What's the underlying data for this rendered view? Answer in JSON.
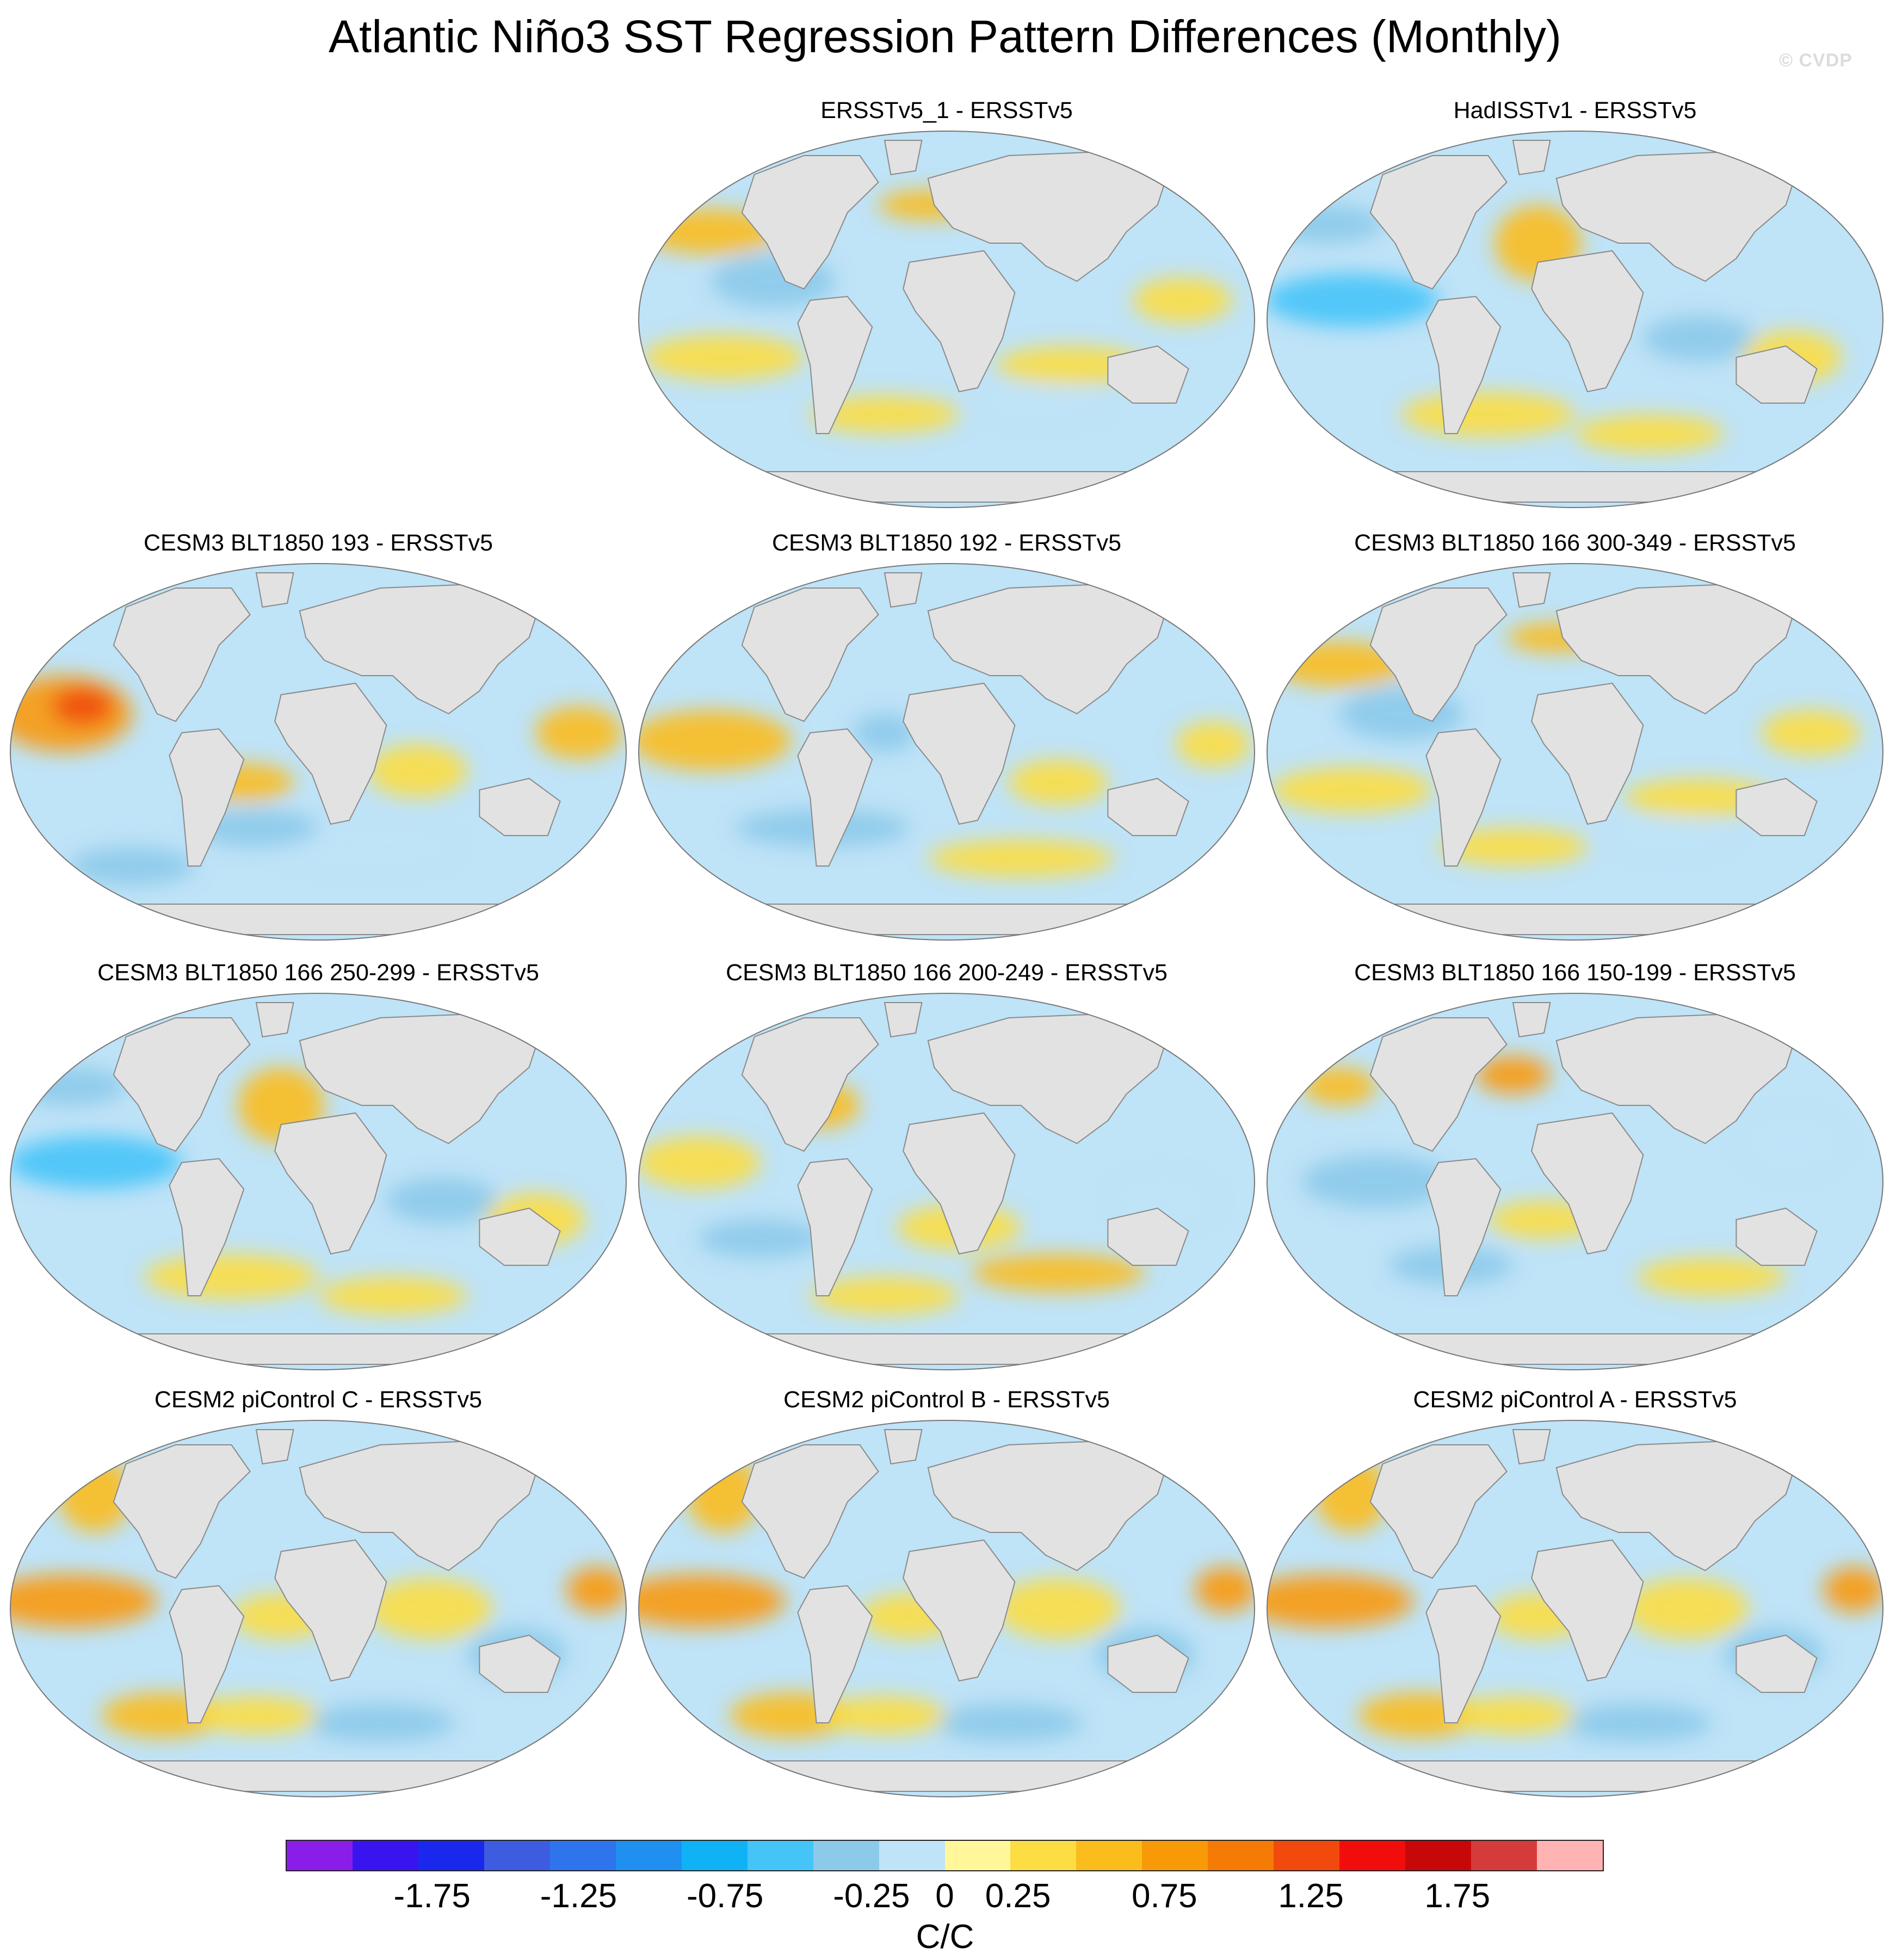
{
  "title": "Atlantic Niño3 SST Regression Pattern Differences (Monthly)",
  "watermark": "© CVDP",
  "panels": [
    {
      "label": "ERSSTv5_1 - ERSSTv5",
      "pattern": "mixed-warm"
    },
    {
      "label": "HadISSTv1 - ERSSTv5",
      "pattern": "cool-pacific"
    },
    {
      "label": "CESM3 BLT1850 193 - ERSSTv5",
      "pattern": "warm-north-pacific"
    },
    {
      "label": "CESM3 BLT1850 192 - ERSSTv5",
      "pattern": "warm-pacific"
    },
    {
      "label": "CESM3 BLT1850 166 300-349 - ERSSTv5",
      "pattern": "mixed-warm"
    },
    {
      "label": "CESM3 BLT1850 166 250-299 - ERSSTv5",
      "pattern": "cool-pacific"
    },
    {
      "label": "CESM3 BLT1850 166 200-249 - ERSSTv5",
      "pattern": "mixed"
    },
    {
      "label": "CESM3 BLT1850 166 150-199 - ERSSTv5",
      "pattern": "mixed-cool"
    },
    {
      "label": "CESM2 piControl C - ERSSTv5",
      "pattern": "warm-band"
    },
    {
      "label": "CESM2 piControl B - ERSSTv5",
      "pattern": "warm-band"
    },
    {
      "label": "CESM2 piControl A - ERSSTv5",
      "pattern": "warm-band"
    }
  ],
  "colorbar": {
    "units": "C/C",
    "colors": [
      "#8a1ee8",
      "#3a14ee",
      "#1a28ee",
      "#3e5ce0",
      "#2e74ec",
      "#1f8ff0",
      "#10b2f6",
      "#45c4f8",
      "#8ccaea",
      "#bfe3f7",
      "#fff79a",
      "#fcdd44",
      "#fbbd1c",
      "#f89a08",
      "#f57b06",
      "#f14a0c",
      "#f20d0d",
      "#c80808",
      "#d63b3b",
      "#ffb3b3"
    ],
    "tick_labels": [
      "-1.75",
      "-1.25",
      "-0.75",
      "-0.25",
      "0",
      "0.25",
      "0.75",
      "1.25",
      "1.75"
    ],
    "tick_values": [
      -1.75,
      -1.25,
      -0.75,
      -0.25,
      0,
      0.25,
      0.75,
      1.25,
      1.75
    ],
    "range": [
      -2.25,
      2.25
    ]
  }
}
